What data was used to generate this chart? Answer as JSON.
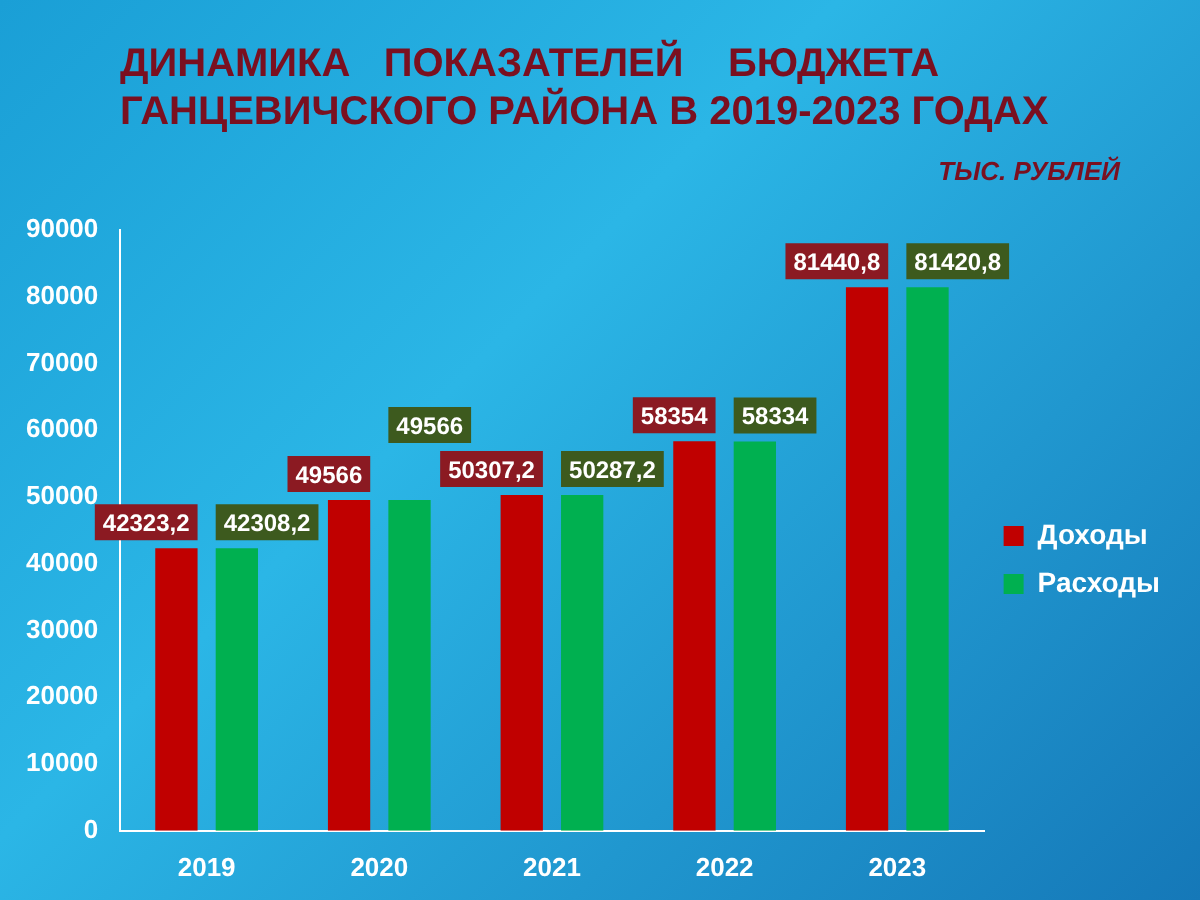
{
  "chart_data": {
    "type": "bar",
    "title": "ДИНАМИКА   ПОКАЗАТЕЛЕЙ    БЮДЖЕТА ГАНЦЕВИЧСКОГО РАЙОНА В 2019-2023 ГОДАХ",
    "subtitle": "ТЫС. РУБЛЕЙ",
    "categories": [
      "2019",
      "2020",
      "2021",
      "2022",
      "2023"
    ],
    "series": [
      {
        "name": "Доходы",
        "color": "#c00000",
        "values": [
          42323.2,
          49566,
          50307.2,
          58354,
          81440.8
        ],
        "value_labels": [
          "42323,2",
          "49566",
          "50307,2",
          "58354",
          "81440,8"
        ]
      },
      {
        "name": "Расходы",
        "color": "#00b050",
        "values": [
          42308.2,
          49566,
          50287.2,
          58334,
          81420.8
        ],
        "value_labels": [
          "42308,2",
          "49566",
          "50287,2",
          "58334",
          "81420,8"
        ]
      }
    ],
    "ylim": [
      0,
      90000
    ],
    "yticks": [
      0,
      10000,
      20000,
      30000,
      40000,
      50000,
      60000,
      70000,
      80000,
      90000
    ],
    "grid": false,
    "legend": "right"
  }
}
